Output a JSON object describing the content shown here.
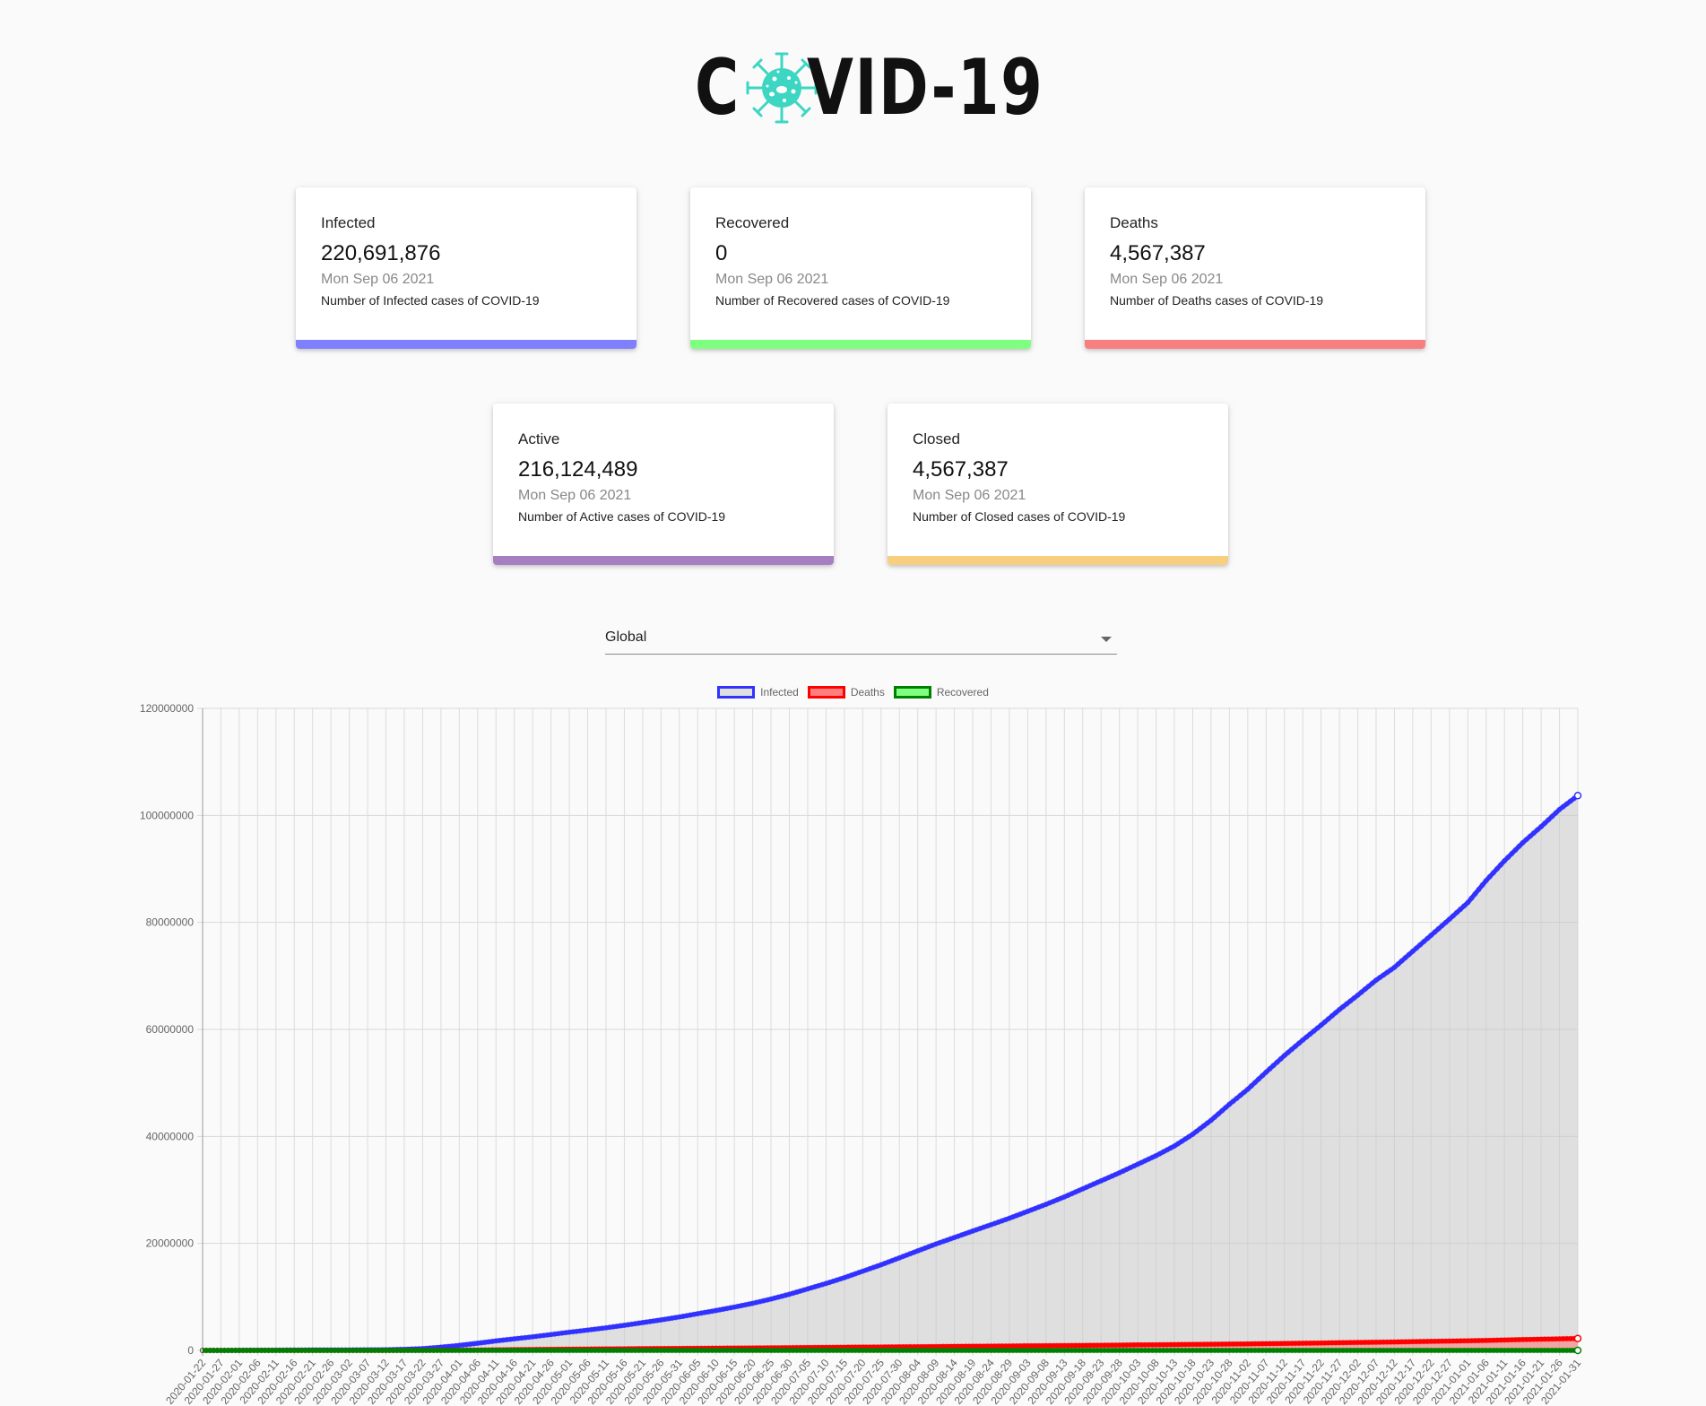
{
  "header": {
    "logo_text_left": "C",
    "logo_text_right": "VID-19",
    "logo_icon": "virus-icon",
    "logo_icon_color": "#3dd6c3"
  },
  "cards": [
    {
      "title": "Infected",
      "value": "220,691,876",
      "date": "Mon Sep 06 2021",
      "desc": "Number of Infected cases of COVID-19",
      "color": "#7f7fff"
    },
    {
      "title": "Recovered",
      "value": "0",
      "date": "Mon Sep 06 2021",
      "desc": "Number of Recovered cases of COVID-19",
      "color": "#7fff7f"
    },
    {
      "title": "Deaths",
      "value": "4,567,387",
      "date": "Mon Sep 06 2021",
      "desc": "Number of Deaths cases of COVID-19",
      "color": "#f77f7f"
    },
    {
      "title": "Active",
      "value": "216,124,489",
      "date": "Mon Sep 06 2021",
      "desc": "Number of Active cases of COVID-19",
      "color": "#a67fc0"
    },
    {
      "title": "Closed",
      "value": "4,567,387",
      "date": "Mon Sep 06 2021",
      "desc": "Number of Closed cases of COVID-19",
      "color": "#f8cf7f"
    }
  ],
  "country_select": {
    "selected": "Global",
    "icon": "caret-down-icon"
  },
  "chart_data": {
    "type": "line",
    "title": "",
    "xlabel": "",
    "ylabel": "",
    "ylim": [
      0,
      120000000
    ],
    "yticks": [
      0,
      20000000,
      40000000,
      60000000,
      80000000,
      100000000,
      120000000
    ],
    "grid": true,
    "legend_position": "top",
    "legend": [
      {
        "name": "Infected",
        "border": "#3232ff",
        "fill": "#dfdfdf"
      },
      {
        "name": "Deaths",
        "border": "#ff0000",
        "fill": "#ff7f7f"
      },
      {
        "name": "Recovered",
        "border": "#008000",
        "fill": "#7fff7f"
      }
    ],
    "x_tick_labels": [
      "2020-01-22",
      "2020-01-27",
      "2020-02-01",
      "2020-02-06",
      "2020-02-11",
      "2020-02-16",
      "2020-02-21",
      "2020-02-26",
      "2020-03-02",
      "2020-03-07",
      "2020-03-12",
      "2020-03-17",
      "2020-03-22",
      "2020-03-27",
      "2020-04-01",
      "2020-04-06",
      "2020-04-11",
      "2020-04-16",
      "2020-04-21",
      "2020-04-26",
      "2020-05-01",
      "2020-05-06",
      "2020-05-11",
      "2020-05-16",
      "2020-05-21",
      "2020-05-26",
      "2020-05-31",
      "2020-06-05",
      "2020-06-10",
      "2020-06-15",
      "2020-06-20",
      "2020-06-25",
      "2020-06-30",
      "2020-07-05",
      "2020-07-10",
      "2020-07-15",
      "2020-07-20",
      "2020-07-25",
      "2020-07-30",
      "2020-08-04",
      "2020-08-09",
      "2020-08-14",
      "2020-08-19",
      "2020-08-24",
      "2020-08-29",
      "2020-09-03",
      "2020-09-08",
      "2020-09-13",
      "2020-09-18",
      "2020-09-23",
      "2020-09-28",
      "2020-10-03",
      "2020-10-08",
      "2020-10-13",
      "2020-10-18",
      "2020-10-23",
      "2020-10-28",
      "2020-11-02",
      "2020-11-07",
      "2020-11-12",
      "2020-11-17",
      "2020-11-22",
      "2020-11-27",
      "2020-12-02",
      "2020-12-07",
      "2020-12-12",
      "2020-12-17",
      "2020-12-22",
      "2020-12-27",
      "2021-01-01",
      "2021-01-06",
      "2021-01-11",
      "2021-01-16",
      "2021-01-21",
      "2021-01-26",
      "2021-01-31"
    ],
    "series": [
      {
        "name": "Infected",
        "values": [
          555,
          2900,
          12000,
          31000,
          43000,
          71000,
          77000,
          82000,
          90000,
          105000,
          128000,
          198000,
          337000,
          596000,
          932000,
          1340000,
          1770000,
          2160000,
          2540000,
          2970000,
          3400000,
          3800000,
          4230000,
          4700000,
          5200000,
          5700000,
          6250000,
          6850000,
          7450000,
          8100000,
          8800000,
          9600000,
          10500000,
          11500000,
          12500000,
          13600000,
          14800000,
          16000000,
          17300000,
          18600000,
          19900000,
          21100000,
          22300000,
          23500000,
          24700000,
          26000000,
          27300000,
          28700000,
          30200000,
          31700000,
          33200000,
          34800000,
          36400000,
          38200000,
          40400000,
          43000000,
          46000000,
          48800000,
          52000000,
          55100000,
          58000000,
          60800000,
          63700000,
          66400000,
          69200000,
          71600000,
          74600000,
          77600000,
          80600000,
          83700000,
          87800000,
          91500000,
          94900000,
          97900000,
          101100000,
          103700000
        ]
      },
      {
        "name": "Deaths",
        "values": [
          17,
          56,
          259,
          565,
          1100,
          1770,
          2250,
          2770,
          3100,
          3550,
          4700,
          8000,
          15000,
          28000,
          51000,
          74000,
          103000,
          145000,
          171000,
          203000,
          233000,
          258000,
          283000,
          308000,
          333000,
          355000,
          373000,
          396000,
          418000,
          438000,
          459000,
          484000,
          510000,
          535000,
          562000,
          590000,
          615000,
          640000,
          667000,
          695000,
          720000,
          748000,
          776000,
          803000,
          828000,
          855000,
          880000,
          904000,
          930000,
          962000,
          996000,
          1035000,
          1063000,
          1092000,
          1118000,
          1150000,
          1184000,
          1220000,
          1262000,
          1305000,
          1345000,
          1387000,
          1440000,
          1488000,
          1533000,
          1580000,
          1640000,
          1687000,
          1740000,
          1800000,
          1860000,
          1940000,
          2020000,
          2090000,
          2160000,
          2230000
        ]
      },
      {
        "name": "Recovered",
        "values": [
          0,
          0,
          0,
          0,
          0,
          0,
          0,
          0,
          0,
          0,
          0,
          0,
          0,
          0,
          0,
          0,
          0,
          0,
          0,
          0,
          0,
          0,
          0,
          0,
          0,
          0,
          0,
          0,
          0,
          0,
          0,
          0,
          0,
          0,
          0,
          0,
          0,
          0,
          0,
          0,
          0,
          0,
          0,
          0,
          0,
          0,
          0,
          0,
          0,
          0,
          0,
          0,
          0,
          0,
          0,
          0,
          0,
          0,
          0,
          0,
          0,
          0,
          0,
          0,
          0,
          0,
          0,
          0,
          0,
          0,
          0,
          0,
          0,
          0,
          0,
          0
        ]
      }
    ]
  }
}
